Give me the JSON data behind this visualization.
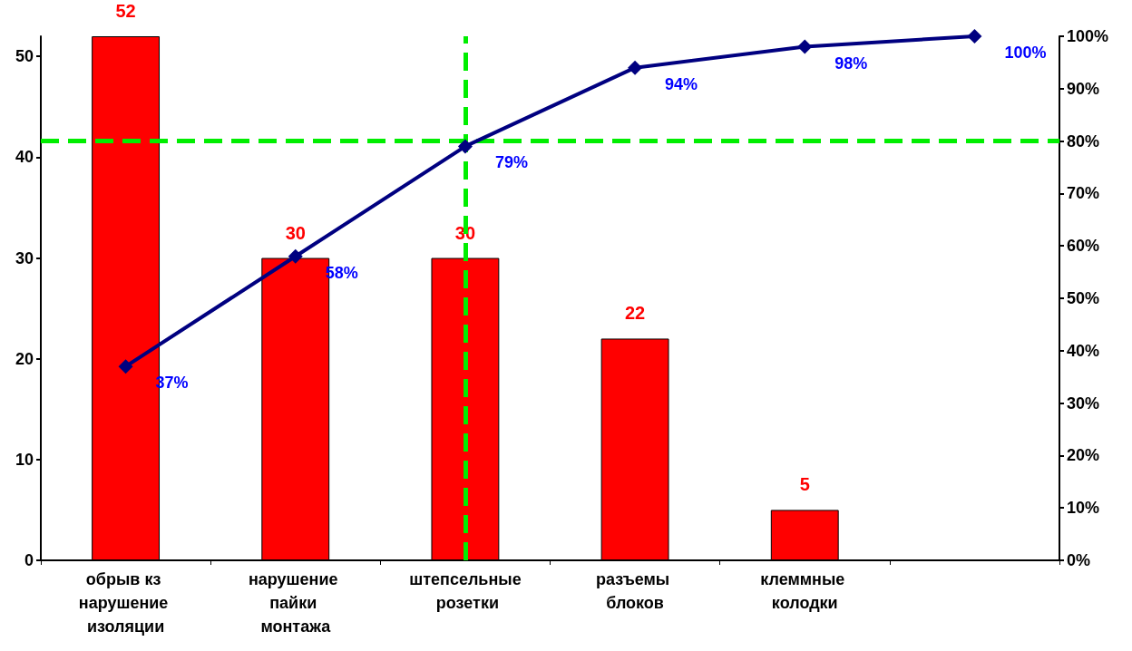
{
  "chart_data": {
    "type": "bar",
    "categories": [
      "обрыв кз нарушение изоляции",
      "нарушение пайки монтажа",
      "штепсельные розетки",
      "разъемы блоков",
      "клеммные колодки",
      null
    ],
    "series": [
      {
        "color": "#ff0000",
        "values": [
          52,
          30,
          30,
          22,
          5,
          null
        ]
      },
      {
        "type": "line",
        "axis": "y2",
        "color": "#000080",
        "marker": "diamond",
        "values": [
          37,
          58,
          79,
          94,
          98,
          100
        ],
        "value_labels": [
          "37%",
          "58%",
          "79%",
          "94%",
          "98%",
          "100%"
        ]
      }
    ],
    "data_labels": true,
    "ylim": [
      0,
      52
    ],
    "yticks": [
      0,
      10,
      20,
      30,
      40,
      50
    ],
    "y2lim": [
      0,
      100
    ],
    "y2ticks": [
      {
        "value": 0,
        "label": "0%"
      },
      {
        "value": 10,
        "label": "10%"
      },
      {
        "value": 20,
        "label": "20%"
      },
      {
        "value": 30,
        "label": "30%"
      },
      {
        "value": 40,
        "label": "40%"
      },
      {
        "value": 50,
        "label": "50%"
      },
      {
        "value": 60,
        "label": "60%"
      },
      {
        "value": 70,
        "label": "70%"
      },
      {
        "value": 80,
        "label": "80%"
      },
      {
        "value": 90,
        "label": "90%"
      },
      {
        "value": 100,
        "label": "100%"
      }
    ],
    "ref_lines": [
      {
        "axis": "y2",
        "value": 80,
        "color": "#00ee00",
        "line_style": "dashed"
      },
      {
        "axis": "x",
        "value": "штепсельные розетки",
        "color": "#00ee00",
        "line_style": "dashed"
      }
    ],
    "grid": false
  }
}
